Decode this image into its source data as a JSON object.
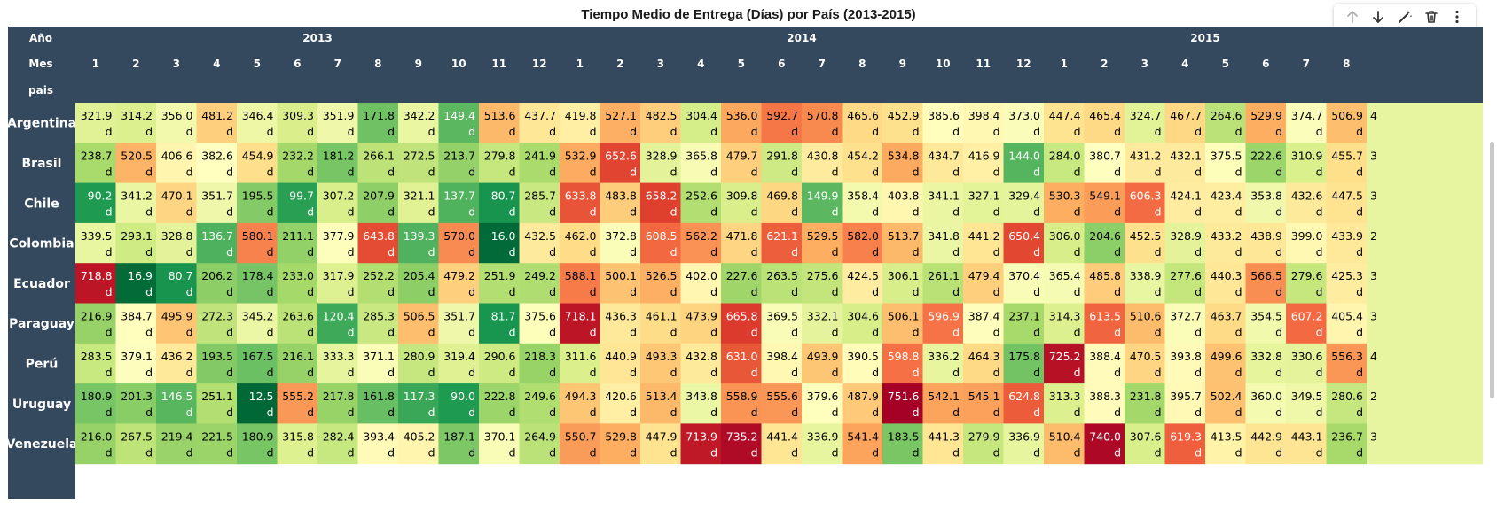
{
  "title": "Tiempo Medio de Entrega (Días) por País (2013-2015)",
  "toolbar": {
    "buttons": [
      {
        "name": "move-up-button",
        "icon": "arrow-up-icon"
      },
      {
        "name": "move-down-button",
        "icon": "arrow-down-icon"
      },
      {
        "name": "edit-button",
        "icon": "magic-wand-icon"
      },
      {
        "name": "delete-button",
        "icon": "trash-icon"
      },
      {
        "name": "more-button",
        "icon": "kebab-menu-icon"
      }
    ]
  },
  "colors": {
    "header_bg": "#34495e",
    "header_text": "#ffffff",
    "scale": [
      "#006837",
      "#1a9850",
      "#66bd63",
      "#a6d96a",
      "#d9ef8b",
      "#ffffbf",
      "#fee08b",
      "#fdae61",
      "#f46d43",
      "#d73027",
      "#a50026"
    ]
  },
  "chart_data": {
    "type": "heatmap",
    "title": "Tiempo Medio de Entrega (Días) por País (2013-2015)",
    "header_labels": {
      "year": "Año",
      "month": "Mes",
      "country": "pais"
    },
    "value_suffix": "d",
    "color_scale": "RdYlGn reversed",
    "vmin": 12.5,
    "vmax": 751.6,
    "years": [
      {
        "label": "2013",
        "months": [
          "1",
          "2",
          "3",
          "4",
          "5",
          "6",
          "7",
          "8",
          "9",
          "10",
          "11",
          "12"
        ]
      },
      {
        "label": "2014",
        "months": [
          "1",
          "2",
          "3",
          "4",
          "5",
          "6",
          "7",
          "8",
          "9",
          "10",
          "11",
          "12"
        ]
      },
      {
        "label": "2015",
        "months": [
          "1",
          "2",
          "3",
          "4",
          "5",
          "6",
          "7",
          "8"
        ]
      }
    ],
    "partial_column_values": [
      "4",
      "3",
      "3",
      "2",
      "3",
      "3",
      "4",
      "2",
      "3"
    ],
    "rows": [
      {
        "country": "Argentina",
        "values": [
          321.9,
          314.2,
          356.0,
          481.2,
          346.4,
          309.3,
          351.9,
          171.8,
          342.2,
          149.4,
          513.6,
          437.7,
          419.8,
          527.1,
          482.5,
          304.4,
          536.0,
          592.7,
          570.8,
          465.6,
          452.9,
          385.6,
          398.4,
          373.0,
          447.4,
          465.4,
          324.7,
          467.7,
          264.6,
          529.9,
          374.7,
          506.9
        ]
      },
      {
        "country": "Brasil",
        "values": [
          238.7,
          520.5,
          406.6,
          382.6,
          454.9,
          232.2,
          181.2,
          266.1,
          272.5,
          213.7,
          279.8,
          241.9,
          532.9,
          652.6,
          328.9,
          365.8,
          479.7,
          291.8,
          430.8,
          454.2,
          534.8,
          434.7,
          416.9,
          144.0,
          284.0,
          380.7,
          431.2,
          432.1,
          375.5,
          222.6,
          310.9,
          455.7
        ]
      },
      {
        "country": "Chile",
        "values": [
          90.2,
          341.2,
          470.1,
          351.7,
          195.5,
          99.7,
          307.2,
          207.9,
          321.1,
          137.7,
          80.7,
          285.7,
          633.8,
          483.8,
          658.2,
          252.6,
          309.8,
          469.8,
          149.9,
          358.4,
          403.8,
          341.1,
          327.1,
          329.4,
          530.3,
          549.1,
          606.3,
          424.1,
          423.4,
          353.8,
          432.6,
          447.5
        ]
      },
      {
        "country": "Colombia",
        "values": [
          339.5,
          293.1,
          328.8,
          136.7,
          580.1,
          211.1,
          377.9,
          643.8,
          139.3,
          570.0,
          16.0,
          432.5,
          462.0,
          372.8,
          608.5,
          562.2,
          471.8,
          621.1,
          529.5,
          582.0,
          513.7,
          341.8,
          441.2,
          650.4,
          306.0,
          204.6,
          452.5,
          328.9,
          433.2,
          438.9,
          399.0,
          433.9
        ]
      },
      {
        "country": "Ecuador",
        "values": [
          718.8,
          16.9,
          80.7,
          206.2,
          178.4,
          233.0,
          317.9,
          252.2,
          205.4,
          479.2,
          251.9,
          249.2,
          588.1,
          500.1,
          526.5,
          402.0,
          227.6,
          263.5,
          275.6,
          424.5,
          306.1,
          261.1,
          479.4,
          370.4,
          365.4,
          485.8,
          338.9,
          277.6,
          440.3,
          566.5,
          279.6,
          425.3
        ]
      },
      {
        "country": "Paraguay",
        "values": [
          216.9,
          384.7,
          495.9,
          272.3,
          345.2,
          263.6,
          120.4,
          285.3,
          506.5,
          351.7,
          81.7,
          375.6,
          718.1,
          436.3,
          461.1,
          473.9,
          665.8,
          369.5,
          332.1,
          304.6,
          506.1,
          596.9,
          387.4,
          237.1,
          314.3,
          613.5,
          510.6,
          372.7,
          463.7,
          354.5,
          607.2,
          405.4
        ]
      },
      {
        "country": "Perú",
        "values": [
          283.5,
          379.1,
          436.2,
          193.5,
          167.5,
          216.1,
          333.3,
          371.1,
          280.9,
          319.4,
          290.6,
          218.3,
          311.6,
          440.9,
          493.3,
          432.8,
          631.0,
          398.4,
          493.9,
          390.5,
          598.8,
          336.2,
          464.3,
          175.8,
          725.2,
          388.4,
          470.5,
          393.8,
          499.6,
          332.8,
          330.6,
          556.3
        ]
      },
      {
        "country": "Uruguay",
        "values": [
          180.9,
          201.3,
          146.5,
          251.1,
          12.5,
          555.2,
          217.8,
          161.8,
          117.3,
          90.0,
          222.8,
          249.6,
          494.3,
          420.6,
          513.4,
          343.8,
          558.9,
          555.6,
          379.6,
          487.9,
          751.6,
          542.1,
          545.1,
          624.8,
          313.3,
          388.3,
          231.8,
          395.7,
          502.4,
          360.0,
          349.5,
          280.6
        ]
      },
      {
        "country": "Venezuela",
        "values": [
          216.0,
          267.5,
          219.4,
          221.5,
          180.9,
          315.8,
          282.4,
          393.4,
          405.2,
          187.1,
          370.1,
          264.9,
          550.7,
          529.8,
          447.9,
          713.9,
          735.2,
          441.4,
          336.9,
          541.4,
          183.5,
          441.3,
          279.9,
          336.9,
          510.4,
          740.0,
          307.6,
          619.3,
          413.5,
          442.9,
          443.1,
          236.7
        ]
      }
    ]
  }
}
